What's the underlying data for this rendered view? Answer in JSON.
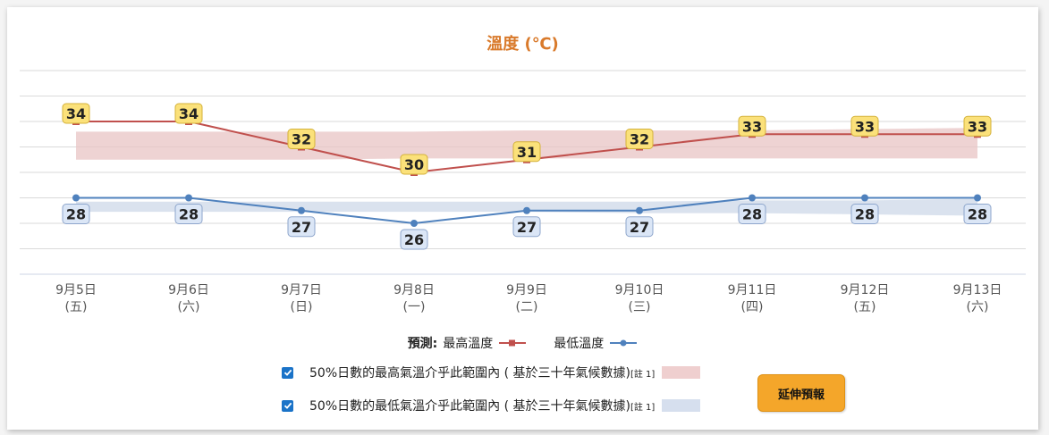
{
  "chart_data": {
    "type": "line",
    "title": "溫度 (℃)",
    "categories": [
      "9月5日",
      "9月6日",
      "9月7日",
      "9月8日",
      "9月9日",
      "9月10日",
      "9月11日",
      "9月12日",
      "9月13日"
    ],
    "weekdays": [
      "(五)",
      "(六)",
      "(日)",
      "(一)",
      "(二)",
      "(三)",
      "(四)",
      "(五)",
      "(六)"
    ],
    "ylim": [
      22,
      38
    ],
    "grid": true,
    "series": [
      {
        "name": "最高溫度",
        "values": [
          34,
          34,
          32,
          30,
          31,
          32,
          33,
          33,
          33
        ],
        "color": "#c0504d",
        "marker": "square"
      },
      {
        "name": "最低溫度",
        "values": [
          28,
          28,
          27,
          26,
          27,
          27,
          28,
          28,
          28
        ],
        "color": "#4f81bd",
        "marker": "circle"
      }
    ],
    "bands": [
      {
        "lower": [
          31,
          31,
          31,
          31.1,
          31.1,
          31.1,
          31.1,
          31.1,
          31.1
        ],
        "upper": [
          33.2,
          33.2,
          33.2,
          33.2,
          33.3,
          33.3,
          33.3,
          33.4,
          33.5
        ],
        "color": "#e8c4c4"
      },
      {
        "lower": [
          26.9,
          26.9,
          26.9,
          26.9,
          26.9,
          26.8,
          26.8,
          26.7,
          26.6
        ],
        "upper": [
          27.7,
          27.7,
          27.7,
          27.7,
          27.7,
          27.7,
          27.8,
          27.8,
          27.9
        ],
        "color": "#cdd8e8"
      }
    ],
    "label_colors": {
      "max_fill": "#fbe17a",
      "max_stroke": "#d4b23a",
      "min_fill": "#dbe6f6",
      "min_stroke": "#8ea6cc"
    }
  },
  "legend": {
    "prefix": "預測:",
    "max_label": "最高溫度",
    "min_label": "最低溫度"
  },
  "range_rows": [
    {
      "checked": true,
      "text": "50%日數的最高氣溫介乎此範圍內 ( 基於三十年氣候數據)",
      "note": "[註 1]",
      "swatch_color": "#efcfcf"
    },
    {
      "checked": true,
      "text": "50%日數的最低氣溫介乎此範圍內 ( 基於三十年氣候數據)",
      "note": "[註 1]",
      "swatch_color": "#d6dfee"
    }
  ],
  "extend_button": {
    "label": "延伸預報"
  }
}
